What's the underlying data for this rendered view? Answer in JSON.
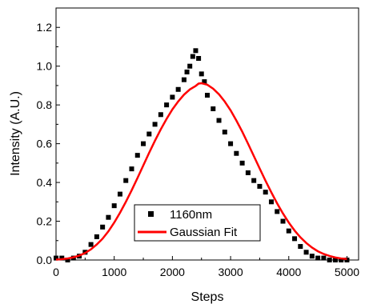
{
  "chart_data": {
    "type": "scatter",
    "title": "",
    "xlabel": "Steps",
    "ylabel": "Intensity (A.U.)",
    "xlim": [
      0,
      5200
    ],
    "ylim": [
      0,
      1.3
    ],
    "xticks": [
      "0",
      "1000",
      "2000",
      "3000",
      "4000",
      "5000"
    ],
    "yticks": [
      "0.0",
      "0.2",
      "0.4",
      "0.6",
      "0.8",
      "1.0",
      "1.2"
    ],
    "grid": false,
    "legend_position": "bottom-center",
    "series": [
      {
        "name": "1160nm",
        "kind": "scatter",
        "marker": "square",
        "color": "#000000",
        "x": [
          0,
          100,
          200,
          300,
          400,
          500,
          600,
          700,
          800,
          900,
          1000,
          1100,
          1200,
          1300,
          1400,
          1500,
          1600,
          1700,
          1800,
          1900,
          2000,
          2100,
          2200,
          2250,
          2300,
          2350,
          2400,
          2450,
          2500,
          2550,
          2600,
          2700,
          2800,
          2900,
          3000,
          3100,
          3200,
          3300,
          3400,
          3500,
          3600,
          3700,
          3800,
          3900,
          4000,
          4100,
          4200,
          4300,
          4400,
          4500,
          4600,
          4700,
          4800,
          4900,
          5000
        ],
        "y": [
          0.01,
          0.01,
          0.0,
          0.01,
          0.02,
          0.04,
          0.08,
          0.12,
          0.17,
          0.22,
          0.28,
          0.34,
          0.41,
          0.47,
          0.54,
          0.6,
          0.65,
          0.7,
          0.75,
          0.8,
          0.84,
          0.88,
          0.93,
          0.97,
          1.0,
          1.05,
          1.08,
          1.04,
          0.96,
          0.92,
          0.85,
          0.78,
          0.72,
          0.66,
          0.6,
          0.55,
          0.5,
          0.45,
          0.41,
          0.38,
          0.35,
          0.3,
          0.25,
          0.2,
          0.15,
          0.11,
          0.07,
          0.04,
          0.02,
          0.01,
          0.01,
          0.0,
          0.0,
          0.0,
          0.0
        ]
      },
      {
        "name": "Gaussian Fit",
        "kind": "line",
        "color": "#ff0000",
        "x": [
          0,
          100,
          200,
          300,
          400,
          500,
          600,
          700,
          800,
          900,
          1000,
          1100,
          1200,
          1300,
          1400,
          1500,
          1600,
          1700,
          1800,
          1900,
          2000,
          2100,
          2200,
          2300,
          2400,
          2450,
          2500,
          2600,
          2700,
          2800,
          2900,
          3000,
          3100,
          3200,
          3300,
          3400,
          3500,
          3600,
          3700,
          3800,
          3900,
          4000,
          4100,
          4200,
          4300,
          4400,
          4500,
          4600,
          4700,
          4800,
          4900,
          5000
        ],
        "y": [
          0.002,
          0.004,
          0.008,
          0.014,
          0.023,
          0.036,
          0.055,
          0.08,
          0.11,
          0.148,
          0.193,
          0.244,
          0.3,
          0.36,
          0.423,
          0.488,
          0.553,
          0.615,
          0.674,
          0.728,
          0.777,
          0.818,
          0.853,
          0.88,
          0.898,
          0.91,
          0.912,
          0.904,
          0.884,
          0.855,
          0.817,
          0.772,
          0.719,
          0.662,
          0.6,
          0.536,
          0.472,
          0.409,
          0.349,
          0.292,
          0.24,
          0.193,
          0.152,
          0.117,
          0.088,
          0.064,
          0.045,
          0.031,
          0.021,
          0.013,
          0.008,
          0.005
        ]
      }
    ]
  }
}
